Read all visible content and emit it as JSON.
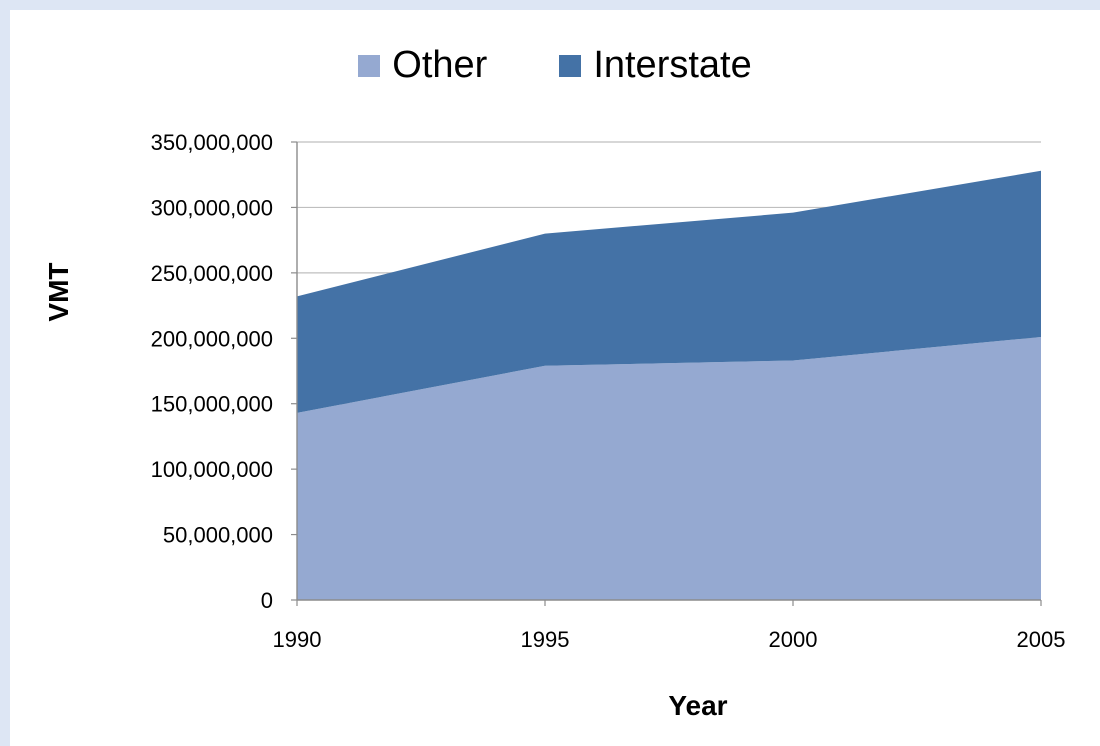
{
  "chart_data": {
    "type": "area",
    "stacked": true,
    "x": [
      1990,
      1995,
      2000,
      2005
    ],
    "x_tick_labels": [
      "1990",
      "1995",
      "2000",
      "2005"
    ],
    "series": [
      {
        "name": "Other",
        "color": "#95a9d1",
        "values": [
          143000000,
          179000000,
          183000000,
          201000000
        ]
      },
      {
        "name": "Interstate",
        "color": "#4472a6",
        "values": [
          89000000,
          101000000,
          113000000,
          127000000
        ]
      }
    ],
    "xlabel": "Year",
    "ylabel": "VMT",
    "ylim": [
      0,
      350000000
    ],
    "y_ticks": [
      0,
      50000000,
      100000000,
      150000000,
      200000000,
      250000000,
      300000000,
      350000000
    ],
    "y_tick_labels": [
      "0",
      "50,000,000",
      "100,000,000",
      "150,000,000",
      "200,000,000",
      "250,000,000",
      "300,000,000",
      "350,000,000"
    ],
    "grid": true,
    "legend_position": "top-center"
  }
}
